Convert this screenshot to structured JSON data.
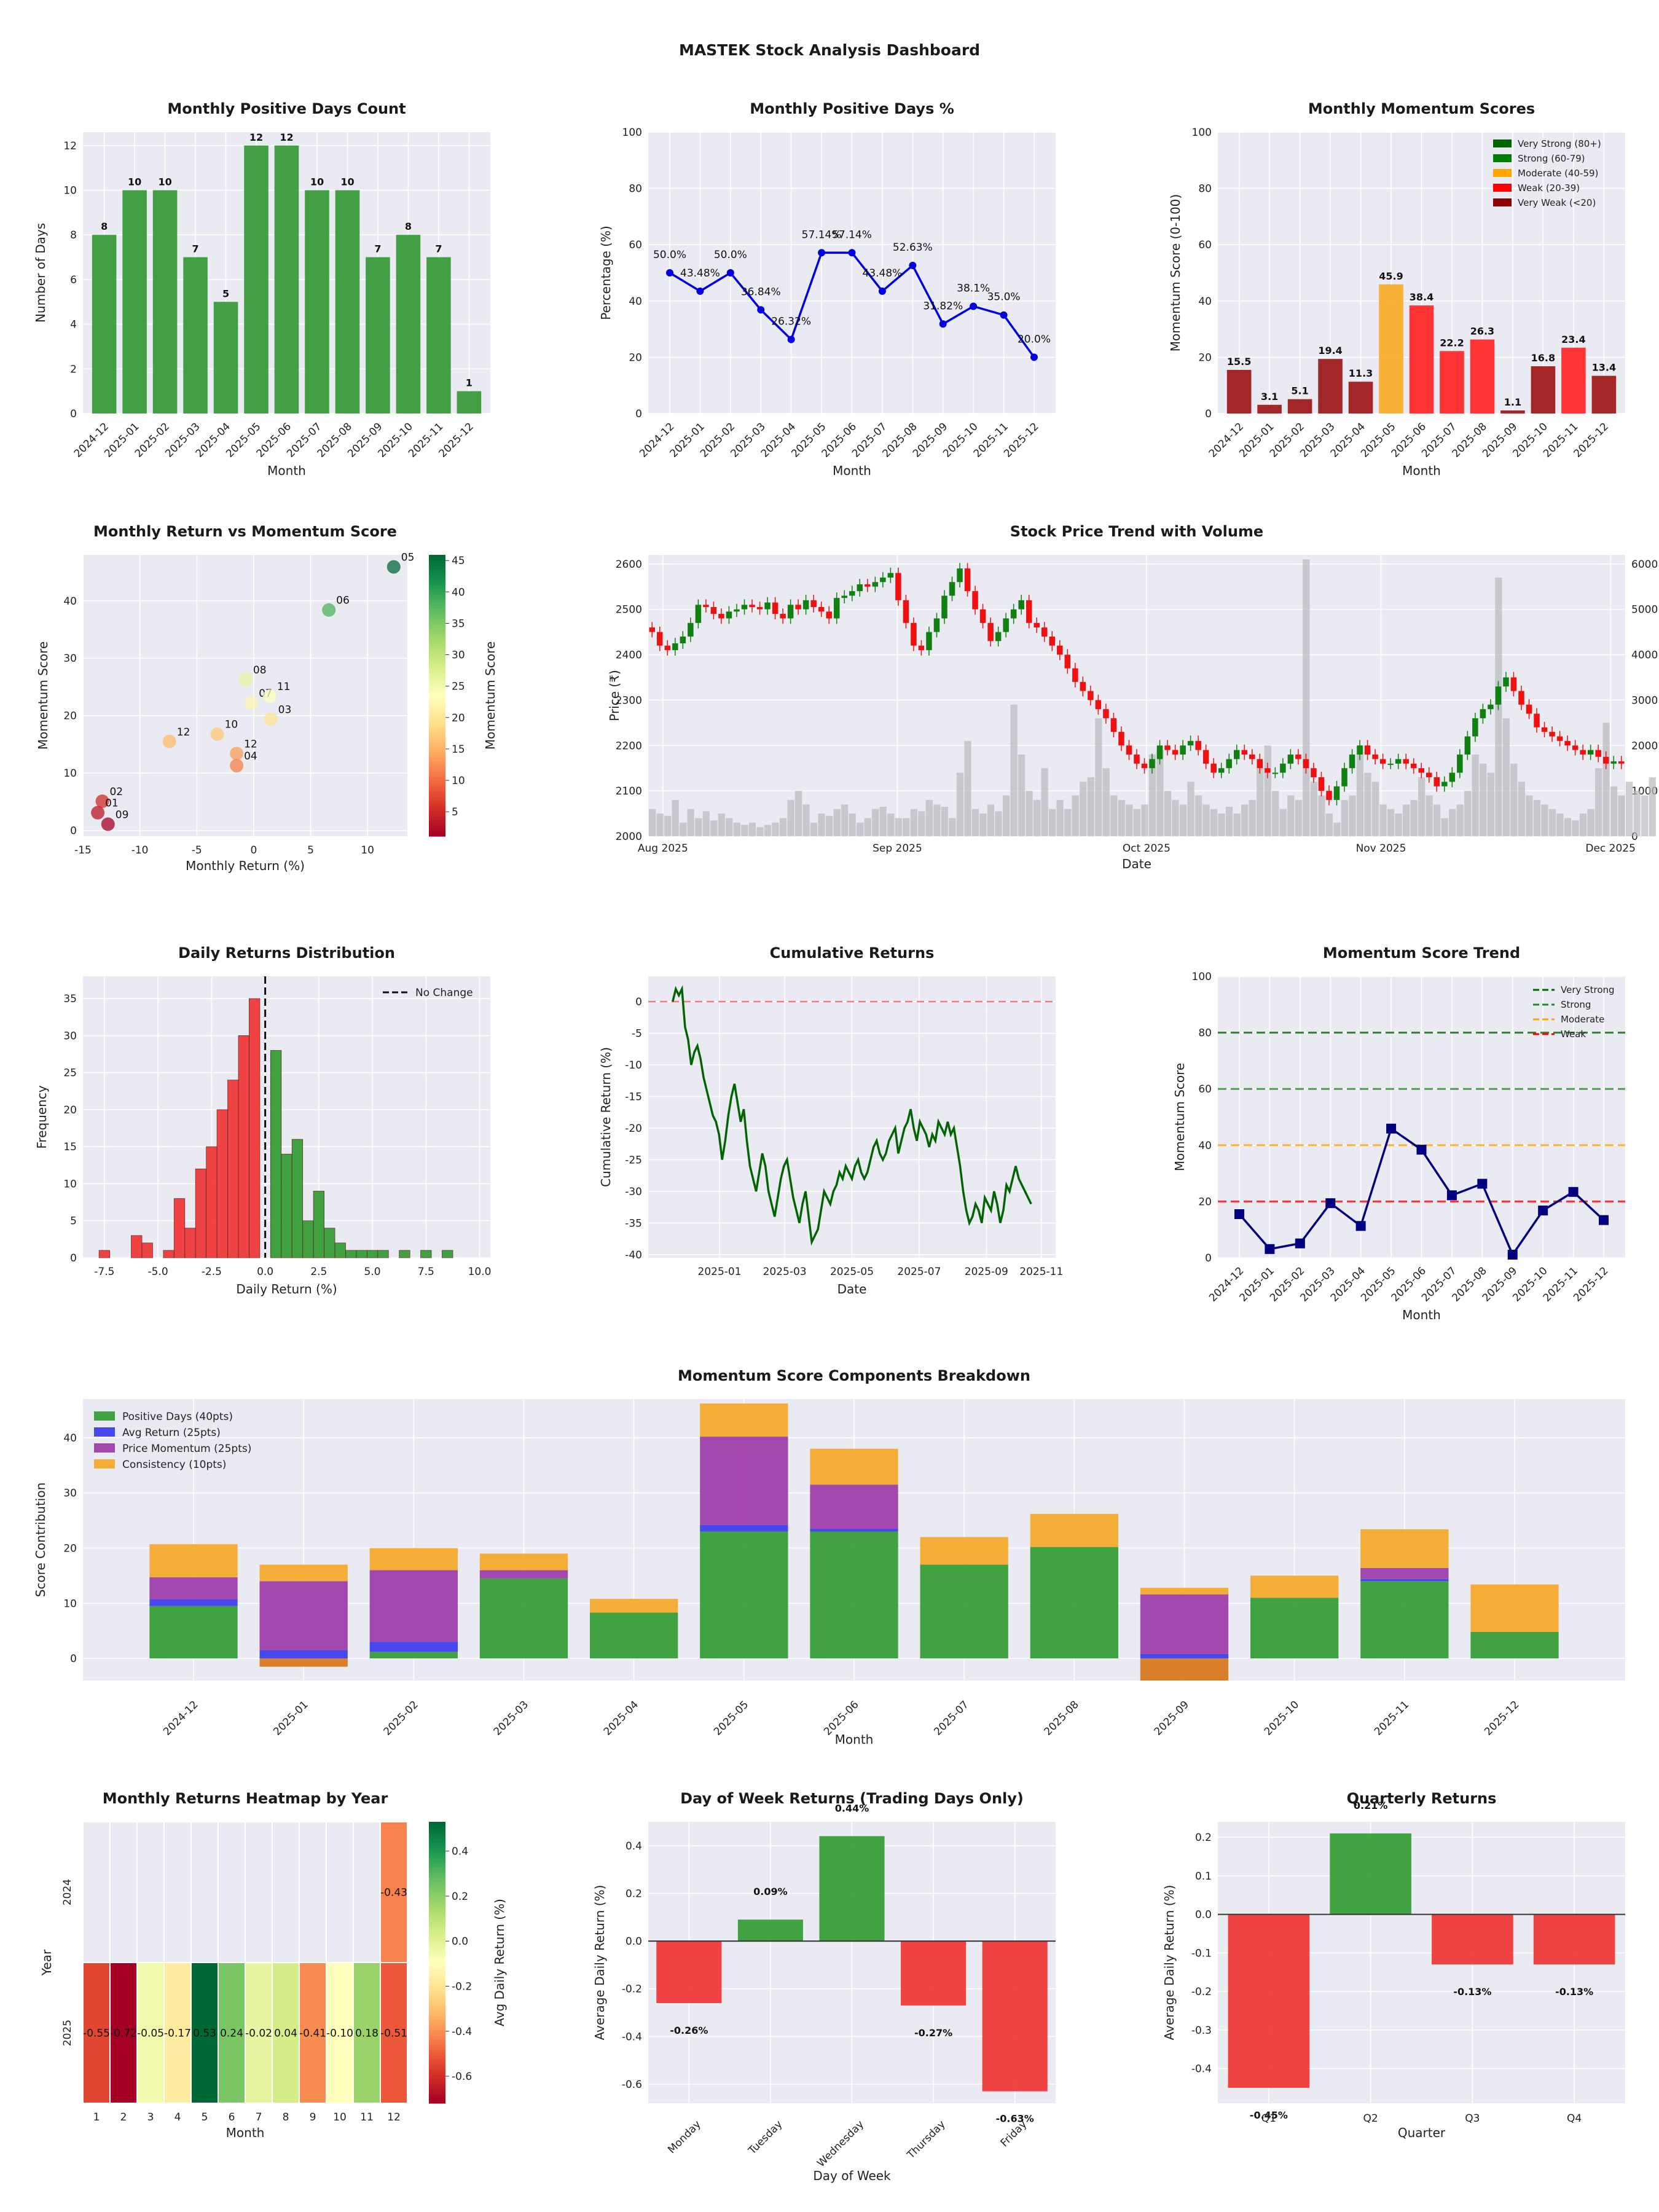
{
  "dashboard": {
    "title": "MASTEK Stock Analysis Dashboard"
  },
  "colors": {
    "green": "#3a9b3a",
    "red": "#f03030",
    "darkred": "#9a1c1c",
    "orange": "#f5a623",
    "blue": "#0000e0",
    "navy": "#000080",
    "purple": "#8e24aa",
    "darkgreen": "#006400",
    "plotbg": "#eaeaf2"
  },
  "chart_data": [
    {
      "id": "pos_days_count",
      "type": "bar",
      "title": "Monthly Positive Days Count",
      "xlabel": "Month",
      "ylabel": "Number of Days",
      "categories": [
        "2024-12",
        "2025-01",
        "2025-02",
        "2025-03",
        "2025-04",
        "2025-05",
        "2025-06",
        "2025-07",
        "2025-08",
        "2025-09",
        "2025-10",
        "2025-11",
        "2025-12"
      ],
      "values": [
        8,
        10,
        10,
        7,
        5,
        12,
        12,
        10,
        10,
        7,
        8,
        7,
        1
      ],
      "ylim": [
        0,
        12.6
      ],
      "yticks": [
        0,
        2,
        4,
        6,
        8,
        10,
        12
      ],
      "grid": true
    },
    {
      "id": "pos_days_pct",
      "type": "line",
      "title": "Monthly Positive Days %",
      "xlabel": "Month",
      "ylabel": "Percentage (%)",
      "categories": [
        "2024-12",
        "2025-01",
        "2025-02",
        "2025-03",
        "2025-04",
        "2025-05",
        "2025-06",
        "2025-07",
        "2025-08",
        "2025-09",
        "2025-10",
        "2025-11",
        "2025-12"
      ],
      "values": [
        50.0,
        43.48,
        50.0,
        36.84,
        26.32,
        57.14,
        57.14,
        43.48,
        52.63,
        31.82,
        38.1,
        35.0,
        20.0
      ],
      "labels": [
        "50.0%",
        "43.48%",
        "50.0%",
        "36.84%",
        "26.32%",
        "57.14%",
        "57.14%",
        "43.48%",
        "52.63%",
        "31.82%",
        "38.1%",
        "35.0%",
        "20.0%"
      ],
      "ylim": [
        0,
        100
      ],
      "yticks": [
        0,
        20,
        40,
        60,
        80,
        100
      ],
      "grid": true
    },
    {
      "id": "momentum_scores",
      "type": "bar",
      "title": "Monthly Momentum Scores",
      "xlabel": "Month",
      "ylabel": "Momentum Score (0-100)",
      "categories": [
        "2024-12",
        "2025-01",
        "2025-02",
        "2025-03",
        "2025-04",
        "2025-05",
        "2025-06",
        "2025-07",
        "2025-08",
        "2025-09",
        "2025-10",
        "2025-11",
        "2025-12"
      ],
      "values": [
        15.5,
        3.1,
        5.1,
        19.4,
        11.3,
        45.9,
        38.4,
        22.2,
        26.3,
        1.1,
        16.8,
        23.4,
        13.4
      ],
      "ylim": [
        0,
        100
      ],
      "yticks": [
        0,
        20,
        40,
        60,
        80,
        100
      ],
      "legend": [
        {
          "label": "Very Strong (80+)",
          "color": "#006400"
        },
        {
          "label": "Strong (60-79)",
          "color": "#008000"
        },
        {
          "label": "Moderate (40-59)",
          "color": "#ffa500"
        },
        {
          "label": "Weak (20-39)",
          "color": "#ff0000"
        },
        {
          "label": "Very Weak (<20)",
          "color": "#8b0000"
        }
      ],
      "legend_position": "top-right"
    },
    {
      "id": "return_vs_momentum",
      "type": "scatter",
      "title": "Monthly Return vs Momentum Score",
      "xlabel": "Monthly Return (%)",
      "ylabel": "Momentum Score",
      "colorbar_label": "Momentum Score",
      "points": [
        {
          "label": "05",
          "x": 12.3,
          "y": 45.9
        },
        {
          "label": "06",
          "x": 6.6,
          "y": 38.4
        },
        {
          "label": "08",
          "x": -0.7,
          "y": 26.3
        },
        {
          "label": "07",
          "x": -0.2,
          "y": 22.2
        },
        {
          "label": "11",
          "x": 1.4,
          "y": 23.4
        },
        {
          "label": "03",
          "x": 1.5,
          "y": 19.4
        },
        {
          "label": "12",
          "x": -7.4,
          "y": 15.5
        },
        {
          "label": "10",
          "x": -3.2,
          "y": 16.8
        },
        {
          "label": "12",
          "x": -1.5,
          "y": 13.4
        },
        {
          "label": "04",
          "x": -1.5,
          "y": 11.3
        },
        {
          "label": "02",
          "x": -13.3,
          "y": 5.1
        },
        {
          "label": "01",
          "x": -13.7,
          "y": 3.1
        },
        {
          "label": "09",
          "x": -12.8,
          "y": 1.1
        }
      ],
      "xlim": [
        -15,
        13.5
      ],
      "ylim": [
        -1,
        48
      ],
      "xticks": [
        -15,
        -10,
        -5,
        0,
        5,
        10
      ],
      "yticks": [
        0,
        10,
        20,
        30,
        40
      ],
      "cbar_ticks": [
        5,
        10,
        15,
        20,
        25,
        30,
        35,
        40,
        45
      ],
      "cbar_range": [
        1.1,
        45.9
      ]
    },
    {
      "id": "price_trend",
      "type": "candlestick",
      "title": "Stock Price Trend with Volume",
      "xlabel": "Date",
      "ylabel": "Price (₹)",
      "xticks": [
        "Aug 2025",
        "Sep 2025",
        "Oct 2025",
        "Nov 2025",
        "Dec 2025"
      ],
      "ylim": [
        2000,
        2620
      ],
      "yticks": [
        2000,
        2100,
        2200,
        2300,
        2400,
        2500,
        2600
      ],
      "volume_ylim": [
        0,
        6200
      ],
      "volume_ticks": [
        0,
        1000,
        2000,
        3000,
        4000,
        5000,
        6000
      ],
      "closes": [
        2450,
        2420,
        2410,
        2425,
        2440,
        2470,
        2510,
        2505,
        2490,
        2480,
        2495,
        2500,
        2510,
        2505,
        2500,
        2515,
        2490,
        2480,
        2510,
        2500,
        2520,
        2505,
        2495,
        2480,
        2525,
        2530,
        2540,
        2555,
        2550,
        2560,
        2570,
        2580,
        2520,
        2470,
        2420,
        2410,
        2450,
        2480,
        2530,
        2560,
        2590,
        2540,
        2500,
        2470,
        2430,
        2450,
        2480,
        2500,
        2520,
        2470,
        2460,
        2440,
        2420,
        2400,
        2370,
        2340,
        2320,
        2300,
        2280,
        2260,
        2230,
        2200,
        2180,
        2160,
        2150,
        2170,
        2200,
        2190,
        2180,
        2200,
        2210,
        2190,
        2160,
        2140,
        2150,
        2170,
        2190,
        2180,
        2170,
        2150,
        2140,
        2140,
        2160,
        2180,
        2170,
        2150,
        2130,
        2100,
        2080,
        2110,
        2150,
        2180,
        2200,
        2180,
        2170,
        2160,
        2160,
        2170,
        2160,
        2150,
        2140,
        2130,
        2110,
        2120,
        2140,
        2180,
        2220,
        2260,
        2280,
        2290,
        2330,
        2350,
        2320,
        2290,
        2270,
        2240,
        2230,
        2220,
        2210,
        2200,
        2190,
        2180,
        2190,
        2175,
        2160,
        2165,
        2160
      ],
      "volumes": [
        600,
        500,
        450,
        800,
        300,
        600,
        400,
        550,
        350,
        500,
        400,
        300,
        250,
        300,
        200,
        250,
        300,
        400,
        800,
        1000,
        700,
        300,
        500,
        450,
        600,
        700,
        500,
        300,
        400,
        600,
        650,
        500,
        400,
        400,
        600,
        550,
        800,
        700,
        650,
        400,
        1400,
        2100,
        600,
        500,
        700,
        550,
        900,
        2900,
        1800,
        1000,
        800,
        1500,
        600,
        800,
        600,
        900,
        1200,
        1300,
        2600,
        1500,
        900,
        800,
        700,
        600,
        700,
        1800,
        1900,
        1000,
        800,
        700,
        1200,
        900,
        700,
        600,
        500,
        650,
        500,
        700,
        800,
        1500,
        2000,
        1000,
        600,
        900,
        800,
        6100,
        1200,
        900,
        500,
        300,
        800,
        900,
        2000,
        1400,
        1200,
        700,
        600,
        500,
        700,
        800,
        1300,
        900,
        700,
        400,
        600,
        700,
        1000,
        1800,
        1600,
        1400,
        5700,
        2600,
        1600,
        1200,
        900,
        800,
        700,
        600,
        500,
        400,
        350,
        500,
        600,
        1500,
        2500,
        1100,
        900,
        1200,
        1000,
        900,
        1300
      ],
      "candle_colors": [
        "green",
        "red"
      ]
    },
    {
      "id": "daily_returns_dist",
      "type": "histogram",
      "title": "Daily Returns Distribution",
      "xlabel": "Daily Return (%)",
      "ylabel": "Frequency",
      "legend": [
        {
          "label": "No Change",
          "style": "dashed"
        }
      ],
      "legend_position": "top-right",
      "bin_start": -7.75,
      "bin_width": 0.5,
      "counts": [
        1,
        0,
        0,
        3,
        2,
        0,
        1,
        8,
        4,
        12,
        15,
        20,
        24,
        30,
        35,
        0,
        28,
        14,
        16,
        5,
        9,
        4,
        2,
        1,
        1,
        1,
        1,
        0,
        1,
        0,
        1,
        0,
        1
      ],
      "xlim": [
        -8.5,
        10.5
      ],
      "ylim": [
        0,
        38
      ],
      "xticks": [
        -7.5,
        -5.0,
        -2.5,
        0.0,
        2.5,
        5.0,
        7.5,
        10.0
      ],
      "yticks": [
        0,
        5,
        10,
        15,
        20,
        25,
        30,
        35
      ]
    },
    {
      "id": "cumulative_returns",
      "type": "line",
      "title": "Cumulative Returns",
      "xlabel": "Date",
      "ylabel": "Cumulative Return (%)",
      "xticks": [
        "2025-01",
        "2025-03",
        "2025-05",
        "2025-07",
        "2025-09",
        "2025-11"
      ],
      "ylim": [
        -40.5,
        4
      ],
      "yticks": [
        0,
        -5,
        -10,
        -15,
        -20,
        -25,
        -30,
        -35,
        -40
      ],
      "reference_line": 0,
      "values": [
        0,
        2,
        1,
        2,
        -4,
        -6,
        -10,
        -8,
        -7,
        -9,
        -12,
        -14,
        -16,
        -18,
        -19,
        -21,
        -25,
        -22,
        -18,
        -15,
        -13,
        -16,
        -19,
        -17,
        -22,
        -26,
        -28,
        -30,
        -27,
        -24,
        -26,
        -30,
        -32,
        -34,
        -31,
        -28,
        -26,
        -25,
        -28,
        -31,
        -33,
        -35,
        -32,
        -30,
        -34,
        -38,
        -37,
        -36,
        -33,
        -30,
        -31,
        -32,
        -30,
        -29,
        -27,
        -28,
        -26,
        -27,
        -28,
        -26,
        -25,
        -27,
        -28,
        -27,
        -25,
        -23,
        -22,
        -24,
        -25,
        -24,
        -22,
        -21,
        -20,
        -24,
        -22,
        -20,
        -19,
        -17,
        -20,
        -22,
        -19,
        -20,
        -21,
        -23,
        -21,
        -22,
        -19,
        -20,
        -21,
        -19,
        -21,
        -20,
        -23,
        -26,
        -30,
        -33,
        -35,
        -34,
        -32,
        -33,
        -35,
        -31,
        -32,
        -33,
        -30,
        -32,
        -35,
        -33,
        -29,
        -30,
        -28,
        -26,
        -28,
        -29,
        -30,
        -31,
        -32
      ]
    },
    {
      "id": "momentum_trend",
      "type": "line",
      "title": "Momentum Score Trend",
      "xlabel": "Month",
      "ylabel": "Momentum Score",
      "categories": [
        "2024-12",
        "2025-01",
        "2025-02",
        "2025-03",
        "2025-04",
        "2025-05",
        "2025-06",
        "2025-07",
        "2025-08",
        "2025-09",
        "2025-10",
        "2025-11",
        "2025-12"
      ],
      "values": [
        15.5,
        3.1,
        5.1,
        19.4,
        11.3,
        45.9,
        38.4,
        22.2,
        26.3,
        1.1,
        16.8,
        23.4,
        13.4
      ],
      "ylim": [
        0,
        100
      ],
      "yticks": [
        0,
        20,
        40,
        60,
        80,
        100
      ],
      "reference_lines": [
        {
          "label": "Very Strong",
          "value": 80,
          "color": "#006400"
        },
        {
          "label": "Strong",
          "value": 60,
          "color": "#228b22"
        },
        {
          "label": "Moderate",
          "value": 40,
          "color": "#ffa500"
        },
        {
          "label": "Weak",
          "value": 20,
          "color": "#ff0000"
        }
      ],
      "legend_position": "top-right"
    },
    {
      "id": "components",
      "type": "stacked_bar",
      "title": "Momentum Score Components Breakdown",
      "xlabel": "Month",
      "ylabel": "Score Contribution",
      "categories": [
        "2024-12",
        "2025-01",
        "2025-02",
        "2025-03",
        "2025-04",
        "2025-05",
        "2025-06",
        "2025-07",
        "2025-08",
        "2025-09",
        "2025-10",
        "2025-11",
        "2025-12"
      ],
      "series": [
        {
          "name": "Positive Days (40pts)",
          "color": "#2e9a2e",
          "values": [
            9.5,
            0,
            1.2,
            14.5,
            8.3,
            23.0,
            23.0,
            17.0,
            20.2,
            0,
            11.0,
            14.0,
            4.8
          ]
        },
        {
          "name": "Avg Return (25pts)",
          "color": "#3535f0",
          "values": [
            1.2,
            1.5,
            1.8,
            0,
            0,
            1.2,
            0.5,
            0,
            0,
            0.8,
            0,
            0.4,
            0
          ]
        },
        {
          "name": "Price Momentum (25pts)",
          "color": "#9a35a5",
          "values": [
            4.0,
            12.5,
            13.0,
            1.5,
            0,
            16.0,
            8.0,
            0,
            0,
            10.8,
            0,
            2.0,
            0
          ]
        },
        {
          "name": "Consistency (10pts)",
          "color": "#f5a623",
          "values": [
            6.0,
            3.0,
            4.0,
            3.0,
            2.5,
            6.0,
            6.5,
            5.0,
            6.0,
            1.2,
            4.0,
            7.0,
            8.6
          ]
        }
      ],
      "negative_parts": [
        0,
        -1.5,
        0,
        0,
        0,
        0,
        0,
        0,
        0,
        -4.0,
        0,
        0,
        0
      ],
      "ylim": [
        -4,
        47
      ],
      "yticks": [
        0,
        10,
        20,
        30,
        40
      ],
      "legend_position": "top-left"
    },
    {
      "id": "heatmap",
      "type": "heatmap",
      "title": "Monthly Returns Heatmap by Year",
      "xlabel": "Month",
      "ylabel": "Year",
      "x": [
        "1",
        "2",
        "3",
        "4",
        "5",
        "6",
        "7",
        "8",
        "9",
        "10",
        "11",
        "12"
      ],
      "y": [
        "2024",
        "2025"
      ],
      "rows": [
        [
          null,
          null,
          null,
          null,
          null,
          null,
          null,
          null,
          null,
          null,
          null,
          -0.43
        ],
        [
          -0.55,
          -0.72,
          -0.05,
          -0.17,
          0.53,
          0.24,
          -0.02,
          0.04,
          -0.41,
          -0.1,
          0.18,
          -0.51
        ]
      ],
      "labels": [
        [
          "",
          "",
          "",
          "",
          "",
          "",
          "",
          "",
          "",
          "",
          "",
          "-0.43"
        ],
        [
          "-0.55",
          "-0.72",
          "-0.05",
          "-0.17",
          "0.53",
          "0.24",
          "-0.02",
          "0.04",
          "-0.41",
          "-0.10",
          "0.18",
          "-0.51"
        ]
      ],
      "colorbar_label": "Avg Daily Return (%)",
      "cbar_ticks": [
        0.4,
        0.2,
        0.0,
        -0.2,
        -0.4,
        -0.6
      ],
      "cbar_range": [
        -0.72,
        0.53
      ]
    },
    {
      "id": "dow_returns",
      "type": "bar",
      "title": "Day of Week Returns (Trading Days Only)",
      "xlabel": "Day of Week",
      "ylabel": "Average Daily Return (%)",
      "categories": [
        "Monday",
        "Tuesday",
        "Wednesday",
        "Thursday",
        "Friday"
      ],
      "values": [
        -0.26,
        0.09,
        0.44,
        -0.27,
        -0.63
      ],
      "labels": [
        "-0.26%",
        "0.09%",
        "0.44%",
        "-0.27%",
        "-0.63%"
      ],
      "ylim": [
        -0.68,
        0.5
      ],
      "yticks": [
        -0.6,
        -0.4,
        -0.2,
        0.0,
        0.2,
        0.4
      ]
    },
    {
      "id": "quarterly_returns",
      "type": "bar",
      "title": "Quarterly Returns",
      "xlabel": "Quarter",
      "ylabel": "Average Daily Return (%)",
      "categories": [
        "Q1",
        "Q2",
        "Q3",
        "Q4"
      ],
      "values": [
        -0.45,
        0.21,
        -0.13,
        -0.13
      ],
      "labels": [
        "-0.45%",
        "0.21%",
        "-0.13%",
        "-0.13%"
      ],
      "ylim": [
        -0.49,
        0.24
      ],
      "yticks": [
        -0.4,
        -0.3,
        -0.2,
        -0.1,
        0.0,
        0.1,
        0.2
      ]
    }
  ]
}
